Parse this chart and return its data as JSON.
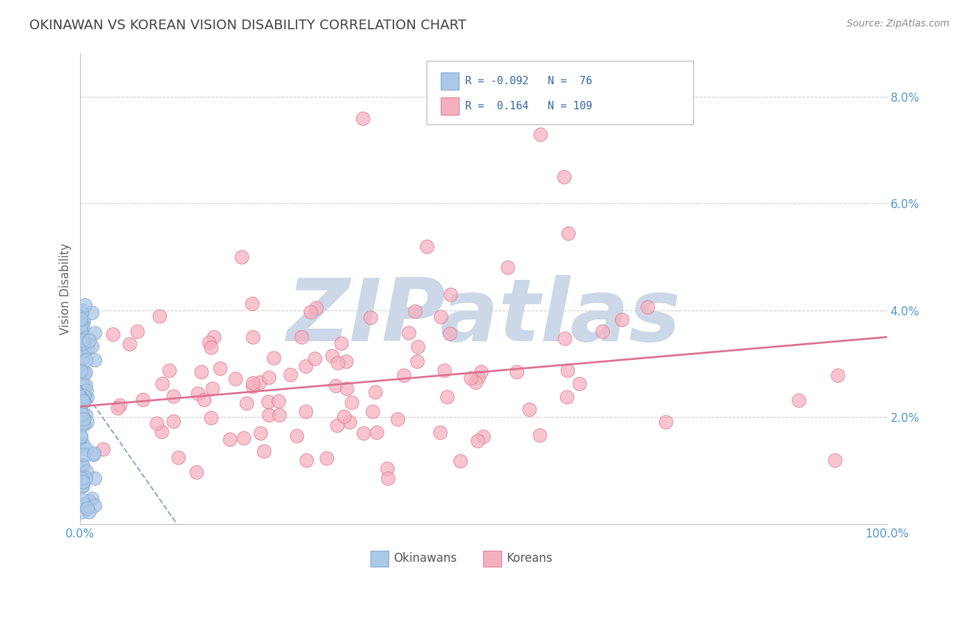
{
  "title": "OKINAWAN VS KOREAN VISION DISABILITY CORRELATION CHART",
  "source": "Source: ZipAtlas.com",
  "ylabel": "Vision Disability",
  "xlim": [
    0.0,
    1.0
  ],
  "ylim": [
    0.0,
    0.088
  ],
  "xticks": [
    0.0,
    0.1,
    0.2,
    0.3,
    0.4,
    0.5,
    0.6,
    0.7,
    0.8,
    0.9,
    1.0
  ],
  "xticklabels": [
    "0.0%",
    "",
    "",
    "",
    "",
    "",
    "",
    "",
    "",
    "",
    "100.0%"
  ],
  "yticks": [
    0.0,
    0.02,
    0.04,
    0.06,
    0.08
  ],
  "yticklabels": [
    "",
    "2.0%",
    "4.0%",
    "6.0%",
    "8.0%"
  ],
  "okinawan_color": "#aac8e8",
  "okinawan_edge": "#88aacc",
  "korean_color": "#f5b0c0",
  "korean_edge": "#dd8090",
  "trendline_okinawan_color": "#88aacc",
  "trendline_korean_color": "#dd7090",
  "grid_color": "#cccccc",
  "background_color": "#ffffff",
  "title_color": "#444444",
  "axis_label_color": "#5599cc",
  "watermark_color": "#ccd8e8",
  "watermark_text": "ZIPatlas",
  "legend_box_color": "#dddddd",
  "legend_text_color": "#3366aa",
  "bottom_legend_text_color": "#555555"
}
